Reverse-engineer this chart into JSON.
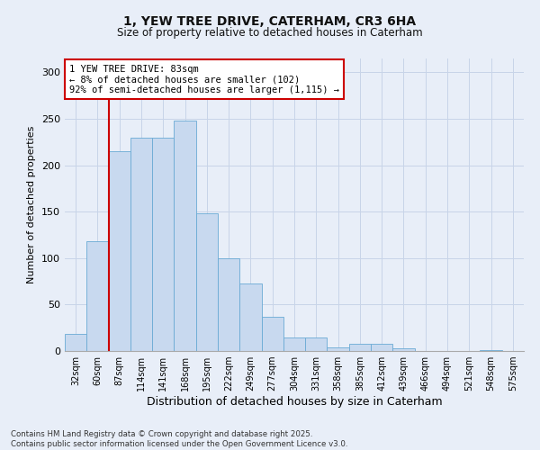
{
  "title_line1": "1, YEW TREE DRIVE, CATERHAM, CR3 6HA",
  "title_line2": "Size of property relative to detached houses in Caterham",
  "xlabel": "Distribution of detached houses by size in Caterham",
  "ylabel": "Number of detached properties",
  "categories": [
    "32sqm",
    "60sqm",
    "87sqm",
    "114sqm",
    "141sqm",
    "168sqm",
    "195sqm",
    "222sqm",
    "249sqm",
    "277sqm",
    "304sqm",
    "331sqm",
    "358sqm",
    "385sqm",
    "412sqm",
    "439sqm",
    "466sqm",
    "494sqm",
    "521sqm",
    "548sqm",
    "575sqm"
  ],
  "values": [
    18,
    118,
    215,
    230,
    230,
    248,
    148,
    100,
    73,
    37,
    15,
    15,
    4,
    8,
    8,
    3,
    0,
    0,
    0,
    1,
    0
  ],
  "bar_color": "#c8d9ef",
  "bar_edge_color": "#6aaad4",
  "vline_x_index": 1,
  "vline_color": "#cc0000",
  "annotation_text": "1 YEW TREE DRIVE: 83sqm\n← 8% of detached houses are smaller (102)\n92% of semi-detached houses are larger (1,115) →",
  "annotation_box_color": "#ffffff",
  "annotation_box_edge": "#cc0000",
  "grid_color": "#c8d4e8",
  "background_color": "#e8eef8",
  "footer_line1": "Contains HM Land Registry data © Crown copyright and database right 2025.",
  "footer_line2": "Contains public sector information licensed under the Open Government Licence v3.0.",
  "ylim": [
    0,
    315
  ],
  "yticks": [
    0,
    50,
    100,
    150,
    200,
    250,
    300
  ]
}
